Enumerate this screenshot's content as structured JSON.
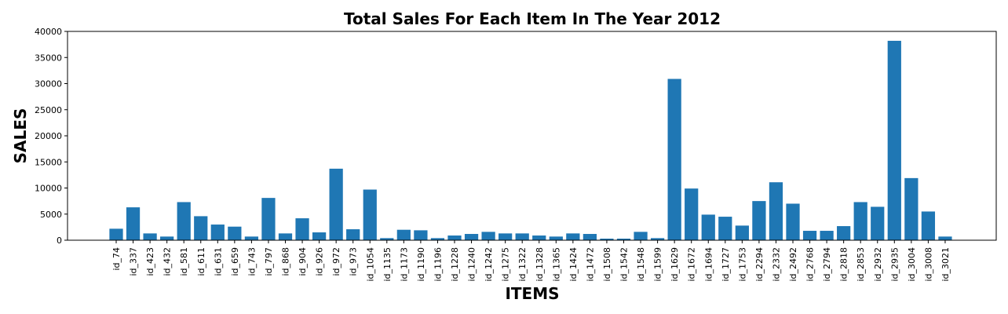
{
  "chart_data": {
    "type": "bar",
    "title": "Total Sales For Each Item In The Year 2012",
    "xlabel": "ITEMS",
    "ylabel": "SALES",
    "ylim": [
      0,
      40000
    ],
    "yticks": [
      "0",
      "5000",
      "10000",
      "15000",
      "20000",
      "25000",
      "30000",
      "35000",
      "40000"
    ],
    "grid": false,
    "bar_color": "#1f77b4",
    "categories": [
      "id_74",
      "id_337",
      "id_423",
      "id_432",
      "id_581",
      "id_611",
      "id_631",
      "id_659",
      "id_743",
      "id_797",
      "id_868",
      "id_904",
      "id_926",
      "id_972",
      "id_973",
      "id_1054",
      "id_1135",
      "id_1173",
      "id_1190",
      "id_1196",
      "id_1228",
      "id_1240",
      "id_1242",
      "id_1275",
      "id_1322",
      "id_1328",
      "id_1365",
      "id_1424",
      "id_1472",
      "id_1508",
      "id_1542",
      "id_1548",
      "id_1599",
      "id_1629",
      "id_1672",
      "id_1694",
      "id_1727",
      "id_1753",
      "id_2294",
      "id_2332",
      "id_2492",
      "id_2768",
      "id_2794",
      "id_2818",
      "id_2853",
      "id_2932",
      "id_2935",
      "id_3004",
      "id_3008",
      "id_3021"
    ],
    "values": [
      2200,
      6300,
      1300,
      700,
      7300,
      4600,
      3000,
      2600,
      700,
      8100,
      1300,
      4200,
      1500,
      13700,
      2100,
      9700,
      400,
      2000,
      1900,
      400,
      900,
      1200,
      1600,
      1300,
      1300,
      900,
      700,
      1300,
      1200,
      300,
      300,
      1600,
      400,
      30900,
      9900,
      4900,
      4500,
      2800,
      7500,
      11100,
      7000,
      1800,
      1800,
      2700,
      7300,
      6400,
      38200,
      11900,
      5500,
      700
    ]
  }
}
